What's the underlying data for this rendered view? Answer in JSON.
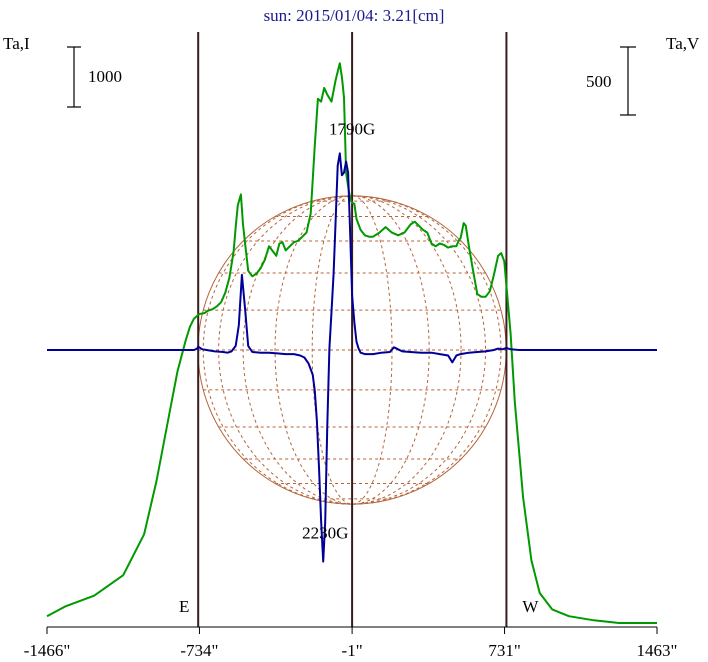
{
  "chart_data": {
    "type": "line",
    "title": "sun: 2015/01/04: 3.21[cm]",
    "left_axis_label": "Ta,I",
    "right_axis_label": "Ta,V",
    "left_scale_bar": "1000",
    "right_scale_bar": "500",
    "x_ticks": [
      "-1466\"",
      "-734\"",
      "-1\"",
      "731\"",
      "1463\""
    ],
    "x_tick_values": [
      -1466,
      -734,
      -1,
      731,
      1463
    ],
    "xlim": [
      -1466,
      1463
    ],
    "limb_labels": {
      "east": "E",
      "west": "W"
    },
    "limb_positions": [
      -740,
      -1,
      740
    ],
    "solar_radius_arcsec": 740,
    "annotations": [
      {
        "text": "1790G",
        "x": -1,
        "y": 1580
      },
      {
        "text": "2230G",
        "x": -130,
        "y": -1380
      }
    ],
    "grid": false,
    "series": [
      {
        "color": "#009900",
        "x": [
          -1466,
          -1380,
          -1240,
          -1100,
          -1000,
          -940,
          -880,
          -840,
          -800,
          -780,
          -760,
          -745,
          -740,
          -730,
          -710,
          -690,
          -670,
          -650,
          -630,
          -610,
          -590,
          -570,
          -560,
          -550,
          -535,
          -525,
          -515,
          -500,
          -480,
          -460,
          -440,
          -420,
          -400,
          -380,
          -365,
          -350,
          -335,
          -320,
          -300,
          -280,
          -260,
          -240,
          -220,
          -200,
          -180,
          -165,
          -150,
          -135,
          -120,
          -100,
          -80,
          -60,
          -50,
          -40,
          -30,
          -20,
          -10,
          -1,
          10,
          20,
          40,
          60,
          80,
          100,
          130,
          160,
          190,
          220,
          250,
          280,
          300,
          320,
          340,
          360,
          380,
          400,
          420,
          440,
          460,
          480,
          500,
          510,
          520,
          535,
          545,
          560,
          580,
          600,
          620,
          640,
          660,
          680,
          700,
          715,
          730,
          745,
          760,
          780,
          820,
          860,
          900,
          960,
          1040,
          1160,
          1280,
          1463
        ],
        "values": [
          -1950,
          -1880,
          -1800,
          -1650,
          -1350,
          -960,
          -480,
          -160,
          70,
          170,
          230,
          250,
          260,
          265,
          270,
          290,
          300,
          320,
          350,
          420,
          530,
          720,
          900,
          1060,
          1140,
          920,
          780,
          580,
          540,
          560,
          600,
          660,
          760,
          720,
          690,
          780,
          790,
          730,
          760,
          790,
          800,
          830,
          860,
          1000,
          1500,
          1840,
          1820,
          1920,
          1870,
          1820,
          1980,
          2100,
          2000,
          1850,
          1300,
          1200,
          1110,
          1080,
          1070,
          960,
          880,
          840,
          830,
          830,
          860,
          900,
          860,
          840,
          860,
          920,
          940,
          910,
          880,
          860,
          780,
          760,
          780,
          770,
          750,
          760,
          760,
          800,
          820,
          930,
          910,
          760,
          580,
          410,
          390,
          390,
          430,
          550,
          690,
          710,
          650,
          380,
          120,
          -380,
          -1080,
          -1540,
          -1780,
          -1900,
          -1950,
          -1980,
          -2000,
          -2000
        ]
      },
      {
        "color": "#000099",
        "x": [
          -1466,
          -800,
          -760,
          -745,
          -740,
          -735,
          -720,
          -700,
          -660,
          -620,
          -600,
          -580,
          -560,
          -545,
          -530,
          -515,
          -500,
          -480,
          -440,
          -400,
          -360,
          -320,
          -280,
          -250,
          -230,
          -210,
          -190,
          -180,
          -170,
          -160,
          -150,
          -140,
          -130,
          -120,
          -110,
          -100,
          -90,
          -80,
          -70,
          -60,
          -50,
          -40,
          -30,
          -20,
          -10,
          -1,
          10,
          20,
          30,
          40,
          60,
          100,
          140,
          180,
          200,
          220,
          240,
          280,
          330,
          380,
          420,
          460,
          480,
          500,
          520,
          560,
          600,
          640,
          680,
          700,
          720,
          740,
          760,
          800,
          1463
        ],
        "values": [
          0,
          0,
          0,
          10,
          25,
          20,
          5,
          0,
          -10,
          -15,
          -20,
          -10,
          30,
          180,
          550,
          300,
          30,
          -15,
          -20,
          -20,
          -25,
          -30,
          -30,
          -40,
          -55,
          -100,
          -180,
          -300,
          -520,
          -860,
          -1250,
          -1550,
          -1260,
          -550,
          10,
          280,
          560,
          960,
          1350,
          1440,
          1280,
          1300,
          1380,
          1300,
          850,
          400,
          200,
          60,
          10,
          -20,
          -30,
          -30,
          -20,
          -15,
          20,
          5,
          -10,
          -15,
          -20,
          -20,
          -30,
          -40,
          -90,
          -40,
          -30,
          -20,
          -15,
          -10,
          0,
          10,
          5,
          15,
          5,
          0,
          0
        ]
      }
    ]
  }
}
